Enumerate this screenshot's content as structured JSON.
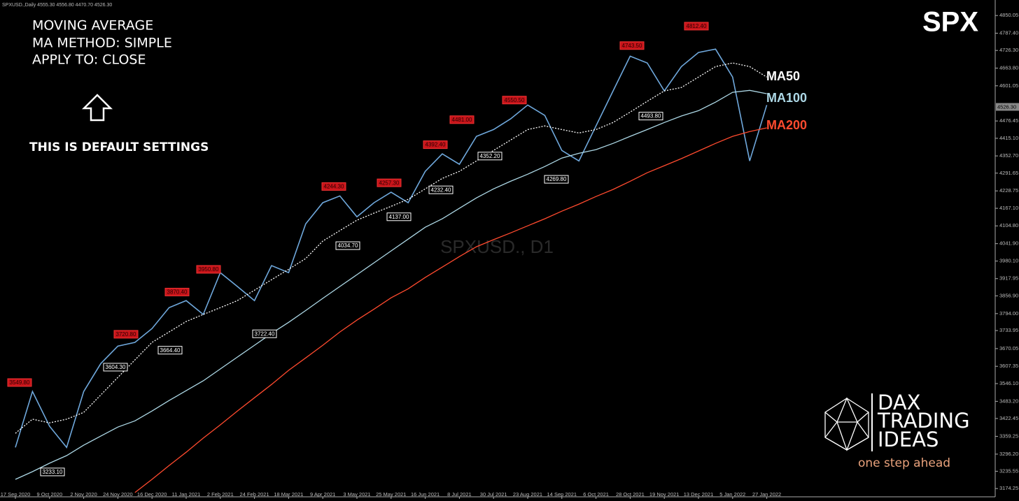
{
  "chart_data": {
    "type": "line",
    "info": "SPXUSD.,Daily  4555.30 4556.80 4470.70 4526.30",
    "title": "SPX",
    "watermark": "SPXUSD., D1",
    "categories": [
      "17 Sep 2020",
      null,
      "9 Oct 2020",
      null,
      "2 Nov 2020",
      null,
      "24 Nov 2020",
      null,
      "16 Dec 2020",
      null,
      "11 Jan 2021",
      null,
      "2 Feb 2021",
      null,
      "24 Feb 2021",
      null,
      "18 Mar 2021",
      null,
      "9 Apr 2021",
      null,
      "3 May 2021",
      null,
      "25 May 2021",
      null,
      "16 Jun 2021",
      null,
      "8 Jul 2021",
      null,
      "30 Jul 2021",
      null,
      "23 Aug 2021",
      null,
      "14 Sep 2021",
      null,
      "6 Oct 2021",
      null,
      "28 Oct 2021",
      null,
      "19 Nov 2021",
      null,
      "13 Dec 2021",
      null,
      "5 Jan 2022",
      null,
      "27 Jan 2022"
    ],
    "series": [
      {
        "color": "#6fa8dc",
        "style": "solid",
        "values": [
          3320,
          3518,
          3395,
          3320,
          3518,
          3617,
          3679,
          3692,
          3741,
          3815,
          3840,
          3791,
          3939,
          3890,
          3840,
          3964,
          3939,
          4112,
          4187,
          4211,
          4137,
          4187,
          4224,
          4187,
          4298,
          4360,
          4323,
          4422,
          4446,
          4484,
          4533,
          4496,
          4372,
          4335,
          4459,
          4583,
          4706,
          4682,
          4583,
          4669,
          4719,
          4731,
          4632,
          4335,
          4533
        ]
      },
      {
        "name": "MA50",
        "color": "#ffffff",
        "style": "dashed",
        "values": [
          3370,
          3420,
          3407,
          3420,
          3444,
          3506,
          3568,
          3630,
          3692,
          3729,
          3766,
          3791,
          3815,
          3840,
          3877,
          3914,
          3951,
          3989,
          4051,
          4088,
          4125,
          4150,
          4174,
          4199,
          4236,
          4273,
          4298,
          4335,
          4372,
          4409,
          4446,
          4459,
          4446,
          4434,
          4446,
          4471,
          4508,
          4546,
          4583,
          4595,
          4632,
          4669,
          4682,
          4669,
          4632
        ]
      },
      {
        "name": "MA100",
        "color": "#add8e6",
        "style": "solid",
        "values": [
          3207,
          3234,
          3264,
          3291,
          3328,
          3360,
          3392,
          3414,
          3449,
          3486,
          3521,
          3556,
          3598,
          3640,
          3682,
          3724,
          3763,
          3805,
          3848,
          3890,
          3932,
          3974,
          4016,
          4058,
          4100,
          4130,
          4167,
          4204,
          4236,
          4263,
          4288,
          4315,
          4345,
          4362,
          4375,
          4397,
          4422,
          4446,
          4471,
          4494,
          4513,
          4543,
          4578,
          4585,
          4573
        ]
      },
      {
        "name": "MA200",
        "color": "#ff4a2e",
        "style": "solid",
        "values": [
          null,
          null,
          null,
          null,
          null,
          null,
          null,
          3160,
          3207,
          3256,
          3303,
          3353,
          3400,
          3449,
          3496,
          3543,
          3593,
          3637,
          3682,
          3729,
          3771,
          3810,
          3850,
          3882,
          3922,
          3959,
          3996,
          4031,
          4056,
          4080,
          4105,
          4130,
          4157,
          4182,
          4209,
          4234,
          4263,
          4293,
          4318,
          4343,
          4370,
          4397,
          4422,
          4439,
          4452
        ]
      }
    ],
    "highs": [
      {
        "value": 3549.8,
        "label": "3549.80"
      },
      {
        "value": 3720.8,
        "label": "3720.80"
      },
      {
        "value": 3870.4,
        "label": "3870.40"
      },
      {
        "value": 3950.8,
        "label": "3950.80"
      },
      {
        "value": 4244.3,
        "label": "4244.30"
      },
      {
        "value": 4257.3,
        "label": "4257.30"
      },
      {
        "value": 4392.4,
        "label": "4392.40"
      },
      {
        "value": 4481,
        "label": "4481.00"
      },
      {
        "value": 4550.5,
        "label": "4550.50"
      },
      {
        "value": 4743.5,
        "label": "4743.50"
      },
      {
        "value": 4812.4,
        "label": "4812.40"
      }
    ],
    "lows": [
      {
        "value": 3233.1,
        "label": "3233.10"
      },
      {
        "value": 3604.3,
        "label": "3604.30"
      },
      {
        "value": 3664.4,
        "label": "3664.40"
      },
      {
        "value": 3722.4,
        "label": "3722.40"
      },
      {
        "value": 4034.7,
        "label": "4034.70"
      },
      {
        "value": 4137,
        "label": "4137.00"
      },
      {
        "value": 4232.4,
        "label": "4232.40"
      },
      {
        "value": 4352.2,
        "label": "4352.20"
      },
      {
        "value": 4269.8,
        "label": "4269.80"
      },
      {
        "value": 4493.8,
        "label": "4493.80"
      }
    ],
    "last": {
      "value": 4526.3,
      "label": "4526.30"
    },
    "ylim": [
      3145,
      4905
    ],
    "yticks": [
      {
        "value": 4850.05,
        "label": "4850.05"
      },
      {
        "value": 4787.4,
        "label": "4787.40"
      },
      {
        "value": 4726.3,
        "label": "4726.30"
      },
      {
        "value": 4663.8,
        "label": "4663.80"
      },
      {
        "value": 4601.05,
        "label": "4601.05"
      },
      {
        "value": 4476.45,
        "label": "4476.45"
      },
      {
        "value": 4415.1,
        "label": "4415.10"
      },
      {
        "value": 4352.7,
        "label": "4352.70"
      },
      {
        "value": 4291.65,
        "label": "4291.65"
      },
      {
        "value": 4228.75,
        "label": "4228.75"
      },
      {
        "value": 4167.1,
        "label": "4167.10"
      },
      {
        "value": 4104.8,
        "label": "4104.80"
      },
      {
        "value": 4041.9,
        "label": "4041.90"
      },
      {
        "value": 3980.1,
        "label": "3980.10"
      },
      {
        "value": 3917.95,
        "label": "3917.95"
      },
      {
        "value": 3856.9,
        "label": "3856.90"
      },
      {
        "value": 3794,
        "label": "3794.00"
      },
      {
        "value": 3733.95,
        "label": "3733.95"
      },
      {
        "value": 3670.05,
        "label": "3670.05"
      },
      {
        "value": 3607.35,
        "label": "3607.35"
      },
      {
        "value": 3546.1,
        "label": "3546.10"
      },
      {
        "value": 3483.2,
        "label": "3483.20"
      },
      {
        "value": 3422.45,
        "label": "3422.45"
      },
      {
        "value": 3359.25,
        "label": "3359.25"
      },
      {
        "value": 3296.2,
        "label": "3296.20"
      },
      {
        "value": 3235.55,
        "label": "3235.55"
      },
      {
        "value": 3174.25,
        "label": "3174.25"
      }
    ],
    "grid": false
  },
  "notes": {
    "lines": [
      "MOVING AVERAGE",
      "MA METHOD: SIMPLE",
      "APPLY TO: CLOSE"
    ],
    "footer": "THIS IS DEFAULT SETTINGS"
  },
  "logo": {
    "lines": [
      "DAX",
      "TRADING",
      "IDEAS"
    ],
    "tagline": "one step ahead"
  }
}
